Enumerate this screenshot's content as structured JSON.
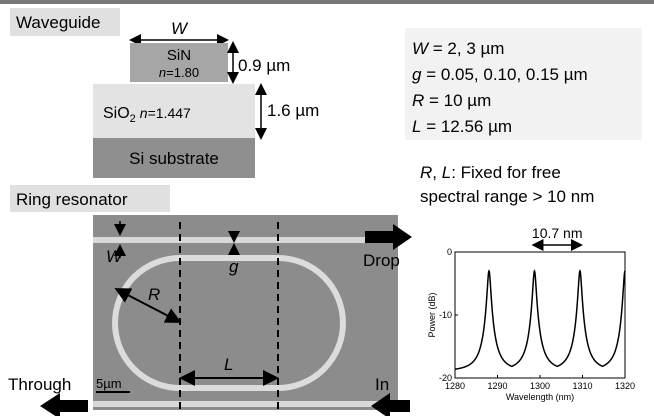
{
  "waveguide": {
    "label": "Waveguide",
    "width_symbol": "W",
    "core": {
      "name": "SiN",
      "index_symbol": "n",
      "index": "=1.80",
      "thickness": "0.9 µm"
    },
    "cladding": {
      "name": "SiO",
      "subscript": "2",
      "index_symbol": "n",
      "index": "=1.447",
      "thickness": "1.6 µm"
    },
    "substrate": "Si substrate"
  },
  "parameters": [
    {
      "symbol": "W",
      "text": " = 2, 3 µm"
    },
    {
      "symbol": "g",
      "text": " = 0.05, 0.10, 0.15 µm"
    },
    {
      "symbol": "R",
      "text": " = 10 µm"
    },
    {
      "symbol": "L",
      "text": " = 12.56 µm"
    }
  ],
  "note": {
    "parts": [
      "R",
      ", ",
      "L",
      ": Fixed for free"
    ],
    "line2": "spectral range > 10 nm"
  },
  "ring": {
    "label": "Ring resonator",
    "w": "W",
    "g": "g",
    "r": "R",
    "l": "L",
    "scale": "5µm",
    "ports": {
      "drop": "Drop",
      "in": "In",
      "through": "Through"
    }
  },
  "spectrum": {
    "fsr_label": "10.7 nm",
    "xlabel": "Wavelength (nm)",
    "ylabel": "Power (dB)",
    "xlim": [
      1280,
      1320
    ],
    "ylim": [
      -20,
      0
    ],
    "xticks": [
      1280,
      1290,
      1300,
      1310,
      1320
    ],
    "yticks": [
      0,
      -10,
      -20
    ],
    "peaks": [
      1288,
      1298.7,
      1309.4,
      1320
    ],
    "peak_db": -3,
    "floor_db": -19
  }
}
